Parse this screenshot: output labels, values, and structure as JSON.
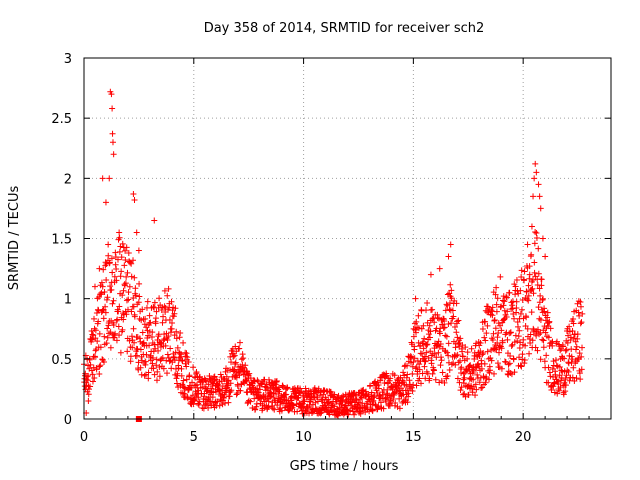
{
  "chart_data": {
    "type": "scatter",
    "title": "Day 358 of 2014, SRMTID for receiver sch2",
    "xlabel": "GPS time / hours",
    "ylabel": "SRMTID / TECUs",
    "xlim": [
      0,
      24
    ],
    "ylim": [
      0,
      3
    ],
    "xticks": [
      0,
      5,
      10,
      15,
      20
    ],
    "yticks": [
      0,
      0.5,
      1,
      1.5,
      2,
      2.5,
      3
    ],
    "grid": true,
    "marker": "plus",
    "color": "#ff0000",
    "profile": [
      [
        0,
        0.3
      ],
      [
        0.3,
        0.45
      ],
      [
        0.6,
        0.7
      ],
      [
        0.9,
        0.85
      ],
      [
        1.2,
        0.95
      ],
      [
        1.5,
        1.0
      ],
      [
        1.8,
        1.05
      ],
      [
        2.1,
        0.95
      ],
      [
        2.4,
        0.8
      ],
      [
        2.7,
        0.7
      ],
      [
        3.0,
        0.65
      ],
      [
        3.3,
        0.65
      ],
      [
        3.6,
        0.7
      ],
      [
        3.9,
        0.75
      ],
      [
        4.2,
        0.6
      ],
      [
        4.5,
        0.42
      ],
      [
        4.8,
        0.3
      ],
      [
        5.2,
        0.25
      ],
      [
        5.6,
        0.22
      ],
      [
        6.0,
        0.22
      ],
      [
        6.4,
        0.25
      ],
      [
        6.8,
        0.4
      ],
      [
        7.1,
        0.42
      ],
      [
        7.4,
        0.25
      ],
      [
        7.8,
        0.2
      ],
      [
        8.2,
        0.2
      ],
      [
        8.6,
        0.2
      ],
      [
        9.0,
        0.18
      ],
      [
        9.5,
        0.15
      ],
      [
        10.0,
        0.15
      ],
      [
        10.5,
        0.15
      ],
      [
        11.0,
        0.14
      ],
      [
        11.5,
        0.12
      ],
      [
        12.0,
        0.12
      ],
      [
        12.5,
        0.13
      ],
      [
        13.0,
        0.18
      ],
      [
        13.5,
        0.22
      ],
      [
        14.0,
        0.25
      ],
      [
        14.4,
        0.22
      ],
      [
        14.7,
        0.3
      ],
      [
        15.0,
        0.5
      ],
      [
        15.3,
        0.6
      ],
      [
        15.6,
        0.65
      ],
      [
        16.0,
        0.6
      ],
      [
        16.3,
        0.55
      ],
      [
        16.6,
        0.7
      ],
      [
        16.8,
        0.85
      ],
      [
        17.1,
        0.5
      ],
      [
        17.5,
        0.35
      ],
      [
        17.8,
        0.4
      ],
      [
        18.1,
        0.5
      ],
      [
        18.4,
        0.65
      ],
      [
        18.7,
        0.75
      ],
      [
        19.0,
        0.8
      ],
      [
        19.3,
        0.7
      ],
      [
        19.6,
        0.75
      ],
      [
        19.9,
        0.85
      ],
      [
        20.2,
        0.9
      ],
      [
        20.4,
        1.0
      ],
      [
        20.6,
        1.1
      ],
      [
        20.8,
        0.85
      ],
      [
        21.0,
        0.65
      ],
      [
        21.3,
        0.5
      ],
      [
        21.6,
        0.4
      ],
      [
        21.9,
        0.45
      ],
      [
        22.2,
        0.55
      ],
      [
        22.5,
        0.65
      ],
      [
        22.7,
        0.7
      ]
    ],
    "spikes": [
      [
        0.2,
        0.15
      ],
      [
        0.5,
        1.1
      ],
      [
        0.7,
        1.25
      ],
      [
        0.85,
        2.0
      ],
      [
        1.0,
        1.8
      ],
      [
        1.15,
        2.0
      ],
      [
        1.2,
        2.72
      ],
      [
        1.25,
        2.7
      ],
      [
        1.28,
        2.58
      ],
      [
        1.3,
        2.37
      ],
      [
        1.32,
        2.3
      ],
      [
        1.35,
        2.2
      ],
      [
        1.6,
        1.55
      ],
      [
        2.25,
        1.87
      ],
      [
        2.3,
        1.82
      ],
      [
        2.4,
        1.55
      ],
      [
        3.2,
        1.65
      ],
      [
        2.5,
        1.4
      ],
      [
        1.1,
        1.45
      ],
      [
        0.1,
        0.05
      ],
      [
        16.7,
        1.45
      ],
      [
        16.6,
        1.35
      ],
      [
        16.2,
        1.25
      ],
      [
        15.8,
        1.2
      ],
      [
        15.1,
        1.0
      ],
      [
        20.3,
        1.2
      ],
      [
        20.4,
        1.6
      ],
      [
        20.45,
        1.85
      ],
      [
        20.5,
        2.0
      ],
      [
        20.55,
        2.12
      ],
      [
        20.6,
        2.05
      ],
      [
        20.7,
        1.95
      ],
      [
        20.75,
        1.85
      ],
      [
        20.8,
        1.75
      ],
      [
        20.9,
        1.5
      ],
      [
        21.0,
        1.35
      ],
      [
        20.2,
        1.45
      ]
    ],
    "markers_square": [
      [
        2.5,
        0.0
      ]
    ]
  }
}
